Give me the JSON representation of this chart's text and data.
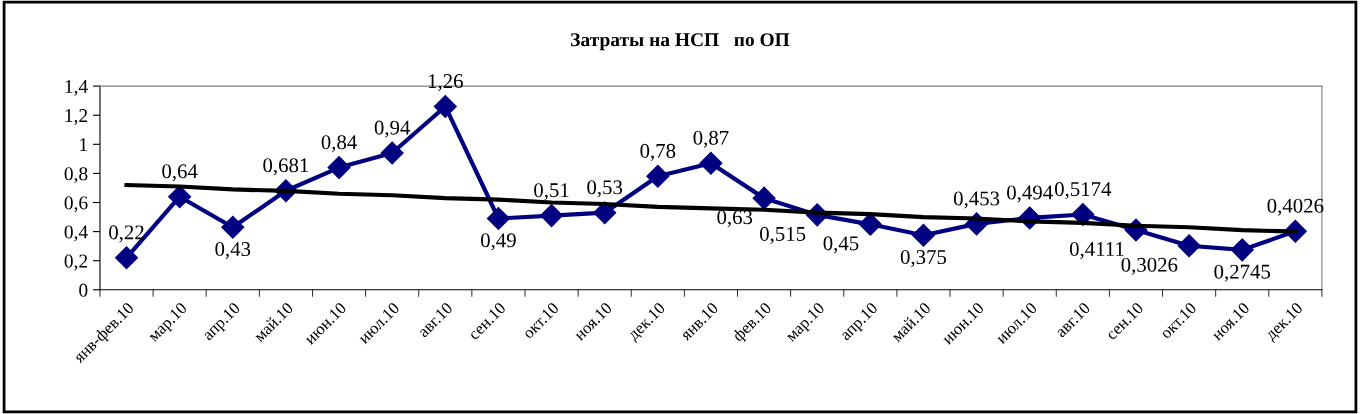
{
  "chart_data": {
    "type": "line",
    "title": "Затраты на НСП   по ОП",
    "categories": [
      "янв-фев.10",
      "мар.10",
      "апр.10",
      "май.10",
      "июн.10",
      "июл.10",
      "авг.10",
      "сен.10",
      "окт.10",
      "ноя.10",
      "дек.10",
      "янв.10",
      "фев.10",
      "мар.10",
      "апр.10",
      "май.10",
      "июн.10",
      "июл.10",
      "авг.10",
      "сен.10",
      "окт.10",
      "ноя.10",
      "дек.10"
    ],
    "series": [
      {
        "color": "#000080",
        "marker": "diamond",
        "values": [
          0.22,
          0.64,
          0.43,
          0.681,
          0.84,
          0.94,
          1.26,
          0.49,
          0.51,
          0.53,
          0.78,
          0.87,
          0.63,
          0.515,
          0.45,
          0.375,
          0.453,
          0.494,
          0.5174,
          0.4111,
          0.3026,
          0.2745,
          0.4026
        ],
        "value_labels": [
          "0,22",
          "0,64",
          "0,43",
          "0,681",
          "0,84",
          "0,94",
          "1,26",
          "0,49",
          "0,51",
          "0,53",
          "0,78",
          "0,87",
          "0,63",
          "0,515",
          "0,45",
          "0,375",
          "0,453",
          "0,494",
          "0,5174",
          "0,4111",
          "0,3026",
          "0,2745",
          "0,4026"
        ]
      },
      {
        "color": "#000000",
        "marker": "none",
        "values": [
          0.72,
          0.71,
          0.69,
          0.68,
          0.66,
          0.65,
          0.63,
          0.62,
          0.6,
          0.59,
          0.57,
          0.56,
          0.55,
          0.53,
          0.52,
          0.5,
          0.49,
          0.47,
          0.46,
          0.44,
          0.43,
          0.41,
          0.4
        ]
      }
    ],
    "ylim": [
      0,
      1.4
    ],
    "yticks": [
      {
        "value": 0,
        "label": "0"
      },
      {
        "value": 0.2,
        "label": "0,2"
      },
      {
        "value": 0.4,
        "label": "0,4"
      },
      {
        "value": 0.6,
        "label": "0,6"
      },
      {
        "value": 0.8,
        "label": "0,8"
      },
      {
        "value": 1,
        "label": "1"
      },
      {
        "value": 1.2,
        "label": "1,2"
      },
      {
        "value": 1.4,
        "label": "1,4"
      }
    ],
    "grid": false,
    "legend": false
  }
}
